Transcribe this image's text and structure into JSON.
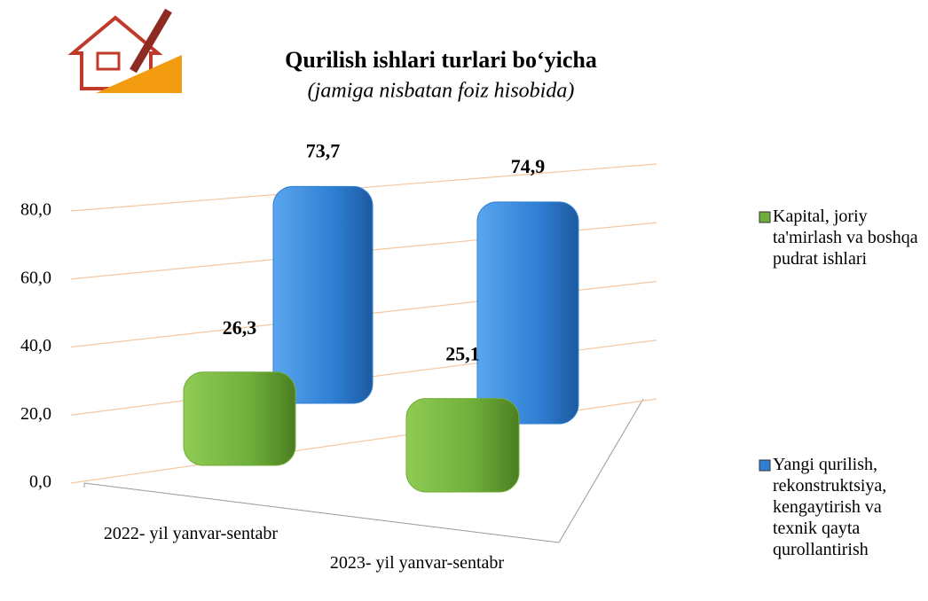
{
  "chart_data": {
    "type": "bar3d",
    "title": "Qurilish ishlari turlari bo‘yicha",
    "subtitle": "(jamiga nisbatan foiz hisobida)",
    "categories": [
      "2022- yil yanvar-sentabr",
      "2023- yil yanvar-sentabr"
    ],
    "series": [
      {
        "name": "Kapital, joriy ta'mirlash va boshqa pudrat ishlari",
        "color": "#6fae3a",
        "values": [
          26.3,
          25.1
        ],
        "value_labels": [
          "26,3",
          "25,1"
        ]
      },
      {
        "name": "Yangi qurilish, rekonstruktsiya, kengaytirish va texnik qayta qurollantirish",
        "color": "#2f7fd4",
        "values": [
          73.7,
          74.9
        ],
        "value_labels": [
          "73,7",
          "74,9"
        ]
      }
    ],
    "ylim": [
      0,
      80
    ],
    "yticks": [
      {
        "value": 0,
        "label": "0,0"
      },
      {
        "value": 20,
        "label": "20,0"
      },
      {
        "value": 40,
        "label": "40,0"
      },
      {
        "value": 60,
        "label": "60,0"
      },
      {
        "value": 80,
        "label": "80,0"
      }
    ],
    "grid": true
  }
}
